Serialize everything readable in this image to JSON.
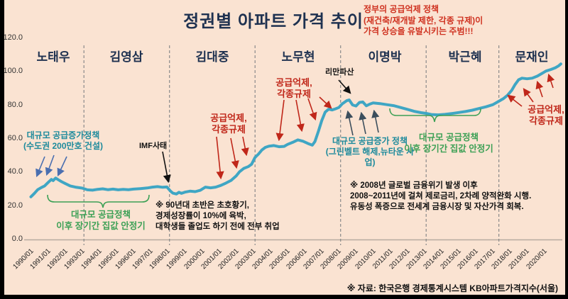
{
  "header": {
    "title": "정권별 아파트 가격 추이",
    "warning_note": "정부의 공급억제 정책\n(재건축/재개발 제한, 각종 규제)이\n가격 상승을 유발시키는 주범!!!"
  },
  "source_note": "※ 자료: 한국은행 경제통계시스템 KB아파트가격지수(서울)",
  "annotations": {
    "supply_1990s": "대규모 공급증가정책\n(수도권 200만호 건설)",
    "imf": "IMF사태",
    "stable_1": "대규모 공급정책\n이후 장기간 집값 안정기",
    "restrain_kdj": "공급억제,\n각종규제",
    "restrain_rmh": "공급억제,\n각종규제",
    "lehman": "리만파산",
    "supply_lmb": "대규모 공급증가 정책\n(그린벨트 해제,뉴타운 사업)",
    "stable_2": "대규모 공급정책\n이후 장기간 집값 안정기",
    "restrain_mji": "공급억제,\n각종규제",
    "note_90s": "※ 90년대 초반은 초호황기,\n경제성장률이 10%에 육박,\n대학생들 졸업도 하기 전에 전부 취업",
    "note_2008": "※ 2008년 글로벌 금융위기 발생 이후\n2008~2011년에 걸쳐 제로금리, 2차례 양적완화 시행.\n유동성 폭증으로 전세계 금융시장 및 자산가격 회복."
  },
  "colors": {
    "background": "#fae3d2",
    "line": "#3fa6c4",
    "red": "#c0271a",
    "teal": "#1d8a9c",
    "green": "#3ca055",
    "navy": "#1e3150",
    "blue_arrow": "#4a6fb0",
    "slate_arrow": "#3c4e5c",
    "black": "#111111"
  },
  "chart_data": {
    "type": "line",
    "title": "정권별 아파트 가격 추이",
    "ylabel": "",
    "xlabel": "",
    "ylim": [
      0,
      120
    ],
    "grid": false,
    "y_ticks": [
      "0.0",
      "20.0",
      "40.0",
      "60.0",
      "80.0",
      "100.0",
      "120.0"
    ],
    "x_tick_labels": [
      "1990/01",
      "1991/01",
      "1992/01",
      "1993/01",
      "1994/01",
      "1995/01",
      "1996/01",
      "1997/01",
      "1998/01",
      "1999/01",
      "2000/01",
      "2001/01",
      "2002/01",
      "2003/01",
      "2004/01",
      "2005/01",
      "2006/01",
      "2007/01",
      "2008/01",
      "2009/01",
      "2010/01",
      "2011/01",
      "2012/01",
      "2013/01",
      "2014/01",
      "2015/01",
      "2016/01",
      "2017/01",
      "2018/01",
      "2019/01",
      "2020/01"
    ],
    "presidents": [
      {
        "name": "노태우"
      },
      {
        "name": "김영삼"
      },
      {
        "name": "김대중"
      },
      {
        "name": "노무현"
      },
      {
        "name": "이명박"
      },
      {
        "name": "박근혜"
      },
      {
        "name": "문재인"
      }
    ],
    "boundary_years": [
      1993.1,
      1998.1,
      2003.1,
      2008.1,
      2013.1,
      2017.35
    ],
    "series": [
      {
        "name": "KB아파트가격지수(서울)",
        "points": [
          [
            1990.0,
            25.0
          ],
          [
            1990.2,
            27.0
          ],
          [
            1990.4,
            29.3
          ],
          [
            1990.6,
            30.5
          ],
          [
            1990.8,
            31.5
          ],
          [
            1991.0,
            33.5
          ],
          [
            1991.2,
            35.4
          ],
          [
            1991.3,
            34.7
          ],
          [
            1991.45,
            36.2
          ],
          [
            1991.6,
            35.2
          ],
          [
            1991.8,
            34.0
          ],
          [
            1992.0,
            33.0
          ],
          [
            1992.3,
            31.5
          ],
          [
            1992.6,
            30.8
          ],
          [
            1993.0,
            30.2
          ],
          [
            1993.3,
            29.2
          ],
          [
            1993.6,
            29.0
          ],
          [
            1993.9,
            29.5
          ],
          [
            1994.2,
            29.8
          ],
          [
            1994.5,
            29.3
          ],
          [
            1994.8,
            29.6
          ],
          [
            1995.1,
            29.2
          ],
          [
            1995.4,
            29.5
          ],
          [
            1995.7,
            29.3
          ],
          [
            1996.0,
            29.6
          ],
          [
            1996.4,
            29.9
          ],
          [
            1996.8,
            30.3
          ],
          [
            1997.1,
            30.8
          ],
          [
            1997.4,
            31.1
          ],
          [
            1997.7,
            30.7
          ],
          [
            1997.95,
            30.9
          ],
          [
            1998.15,
            28.5
          ],
          [
            1998.3,
            27.2
          ],
          [
            1998.5,
            26.7
          ],
          [
            1998.65,
            27.7
          ],
          [
            1998.8,
            27.1
          ],
          [
            1999.0,
            27.8
          ],
          [
            1999.3,
            28.4
          ],
          [
            1999.6,
            28.1
          ],
          [
            1999.9,
            28.9
          ],
          [
            2000.2,
            30.8
          ],
          [
            2000.5,
            30.4
          ],
          [
            2000.8,
            30.8
          ],
          [
            2001.1,
            31.8
          ],
          [
            2001.4,
            33.2
          ],
          [
            2001.7,
            34.8
          ],
          [
            2002.0,
            37.5
          ],
          [
            2002.2,
            40.0
          ],
          [
            2002.45,
            42.0
          ],
          [
            2002.7,
            43.0
          ],
          [
            2002.9,
            44.5
          ],
          [
            2003.1,
            48.5
          ],
          [
            2003.3,
            50.5
          ],
          [
            2003.5,
            53.0
          ],
          [
            2003.7,
            54.5
          ],
          [
            2003.9,
            55.2
          ],
          [
            2004.2,
            55.6
          ],
          [
            2004.5,
            54.9
          ],
          [
            2004.8,
            55.1
          ],
          [
            2005.0,
            56.3
          ],
          [
            2005.3,
            57.5
          ],
          [
            2005.6,
            59.0
          ],
          [
            2005.9,
            58.2
          ],
          [
            2006.2,
            56.8
          ],
          [
            2006.45,
            55.8
          ],
          [
            2006.6,
            58.0
          ],
          [
            2006.8,
            64.0
          ],
          [
            2007.0,
            70.5
          ],
          [
            2007.2,
            75.5
          ],
          [
            2007.4,
            77.3
          ],
          [
            2007.6,
            76.8
          ],
          [
            2007.8,
            77.5
          ],
          [
            2008.0,
            78.3
          ],
          [
            2008.2,
            80.5
          ],
          [
            2008.45,
            82.3
          ],
          [
            2008.6,
            82.8
          ],
          [
            2008.8,
            79.8
          ],
          [
            2009.0,
            79.2
          ],
          [
            2009.2,
            81.3
          ],
          [
            2009.4,
            81.6
          ],
          [
            2009.6,
            79.3
          ],
          [
            2009.8,
            80.3
          ],
          [
            2010.0,
            81.0
          ],
          [
            2010.4,
            80.6
          ],
          [
            2010.8,
            80.0
          ],
          [
            2011.2,
            79.4
          ],
          [
            2011.6,
            78.3
          ],
          [
            2012.0,
            77.2
          ],
          [
            2012.4,
            76.0
          ],
          [
            2012.8,
            75.2
          ],
          [
            2013.1,
            74.8
          ],
          [
            2013.4,
            74.1
          ],
          [
            2013.8,
            73.9
          ],
          [
            2014.2,
            74.2
          ],
          [
            2014.6,
            74.7
          ],
          [
            2015.0,
            75.3
          ],
          [
            2015.4,
            75.9
          ],
          [
            2015.8,
            76.7
          ],
          [
            2016.2,
            77.7
          ],
          [
            2016.6,
            78.7
          ],
          [
            2017.0,
            80.0
          ],
          [
            2017.35,
            82.0
          ],
          [
            2017.6,
            83.5
          ],
          [
            2017.85,
            85.5
          ],
          [
            2018.1,
            88.5
          ],
          [
            2018.3,
            92.0
          ],
          [
            2018.5,
            94.8
          ],
          [
            2018.7,
            95.8
          ],
          [
            2019.0,
            95.4
          ],
          [
            2019.3,
            95.8
          ],
          [
            2019.6,
            97.0
          ],
          [
            2019.85,
            98.5
          ],
          [
            2020.1,
            100.0
          ],
          [
            2020.4,
            101.0
          ],
          [
            2020.65,
            102.0
          ],
          [
            2020.85,
            103.2
          ],
          [
            2020.97,
            104.3
          ]
        ]
      }
    ]
  }
}
